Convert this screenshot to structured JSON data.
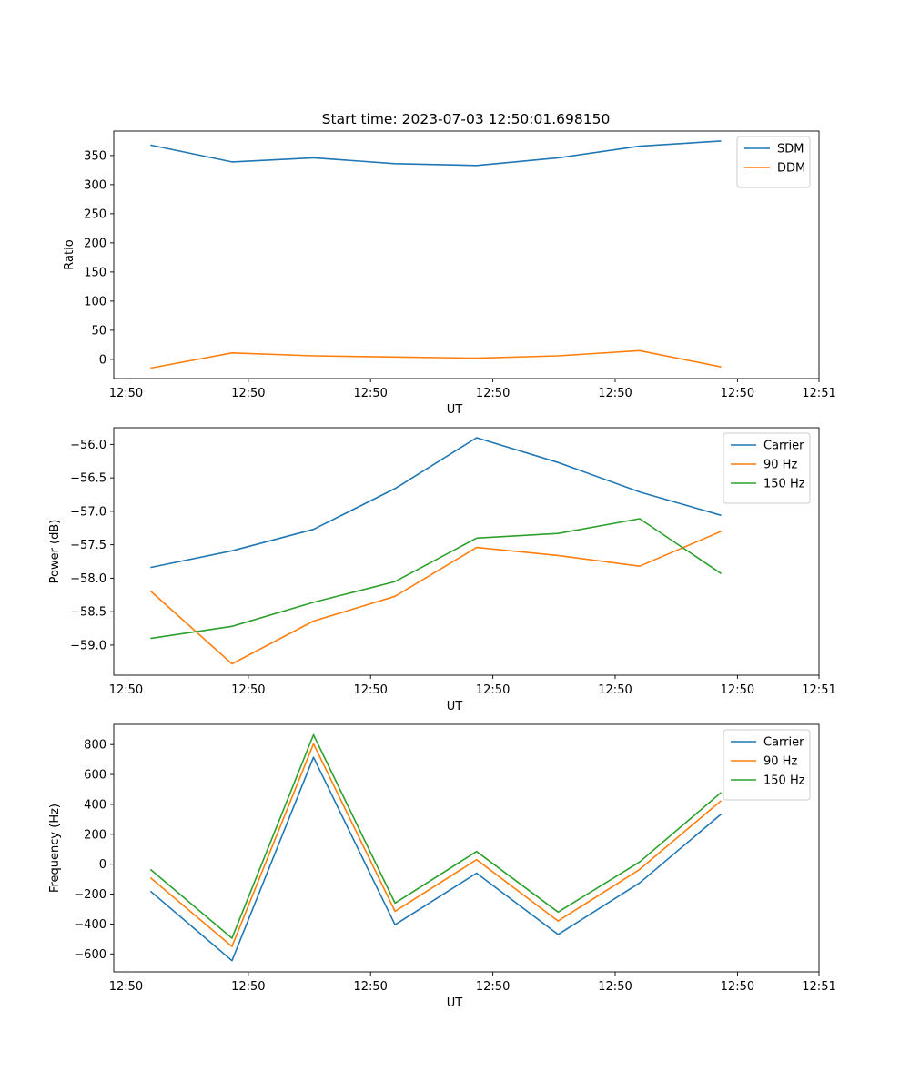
{
  "figure": {
    "title": "Start time: 2023-07-03 12:50:01.698150"
  },
  "chart_data": [
    {
      "type": "line",
      "title": "Start time: 2023-07-03 12:50:01.698150",
      "xlabel": "UT",
      "ylabel": "Ratio",
      "x": [
        1,
        2,
        3,
        4,
        5,
        6,
        7,
        8
      ],
      "xlim": [
        0.55,
        9.2
      ],
      "xticks": [
        {
          "value": 0.7,
          "label": "12:50"
        },
        {
          "value": 2.2,
          "label": "12:50"
        },
        {
          "value": 3.7,
          "label": "12:50"
        },
        {
          "value": 5.2,
          "label": "12:50"
        },
        {
          "value": 6.7,
          "label": "12:50"
        },
        {
          "value": 8.2,
          "label": "12:50"
        },
        {
          "value": 9.2,
          "label": "12:51"
        }
      ],
      "ylim": [
        -33,
        392
      ],
      "yticks": [
        {
          "value": 0,
          "label": "0"
        },
        {
          "value": 50,
          "label": "50"
        },
        {
          "value": 100,
          "label": "100"
        },
        {
          "value": 150,
          "label": "150"
        },
        {
          "value": 200,
          "label": "200"
        },
        {
          "value": 250,
          "label": "250"
        },
        {
          "value": 300,
          "label": "300"
        },
        {
          "value": 350,
          "label": "350"
        }
      ],
      "legend": "top-right",
      "series": [
        {
          "name": "SDM",
          "color": "#1f77b4",
          "values": [
            368,
            339,
            346,
            336,
            333,
            346,
            366,
            375
          ]
        },
        {
          "name": "DDM",
          "color": "#ff7f0e",
          "values": [
            -15,
            11,
            6,
            4,
            2,
            6,
            15,
            -13
          ]
        }
      ]
    },
    {
      "type": "line",
      "title": "",
      "xlabel": "UT",
      "ylabel": "Power (dB)",
      "x": [
        1,
        2,
        3,
        4,
        5,
        6,
        7,
        8
      ],
      "xlim": [
        0.55,
        9.2
      ],
      "xticks": [
        {
          "value": 0.7,
          "label": "12:50"
        },
        {
          "value": 2.2,
          "label": "12:50"
        },
        {
          "value": 3.7,
          "label": "12:50"
        },
        {
          "value": 5.2,
          "label": "12:50"
        },
        {
          "value": 6.7,
          "label": "12:50"
        },
        {
          "value": 8.2,
          "label": "12:50"
        },
        {
          "value": 9.2,
          "label": "12:51"
        }
      ],
      "ylim": [
        -59.45,
        -55.75
      ],
      "yticks": [
        {
          "value": -59.0,
          "label": "−59.0"
        },
        {
          "value": -58.5,
          "label": "−58.5"
        },
        {
          "value": -58.0,
          "label": "−58.0"
        },
        {
          "value": -57.5,
          "label": "−57.5"
        },
        {
          "value": -57.0,
          "label": "−57.0"
        },
        {
          "value": -56.5,
          "label": "−56.5"
        },
        {
          "value": -56.0,
          "label": "−56.0"
        }
      ],
      "legend": "top-right",
      "series": [
        {
          "name": "Carrier",
          "color": "#1f77b4",
          "values": [
            -57.84,
            -57.59,
            -57.27,
            -56.66,
            -55.9,
            -56.27,
            -56.71,
            -57.06
          ]
        },
        {
          "name": "90 Hz",
          "color": "#ff7f0e",
          "values": [
            -58.19,
            -59.28,
            -58.64,
            -58.27,
            -57.54,
            -57.66,
            -57.82,
            -57.3
          ]
        },
        {
          "name": "150 Hz",
          "color": "#2ca02c",
          "values": [
            -58.9,
            -58.72,
            -58.36,
            -58.05,
            -57.4,
            -57.33,
            -57.11,
            -57.93
          ]
        }
      ]
    },
    {
      "type": "line",
      "title": "",
      "xlabel": "UT",
      "ylabel": "Frequency (Hz)",
      "x": [
        1,
        2,
        3,
        4,
        5,
        6,
        7,
        8
      ],
      "xlim": [
        0.55,
        9.2
      ],
      "xticks": [
        {
          "value": 0.7,
          "label": "12:50"
        },
        {
          "value": 2.2,
          "label": "12:50"
        },
        {
          "value": 3.7,
          "label": "12:50"
        },
        {
          "value": 5.2,
          "label": "12:50"
        },
        {
          "value": 6.7,
          "label": "12:50"
        },
        {
          "value": 8.2,
          "label": "12:50"
        },
        {
          "value": 9.2,
          "label": "12:51"
        }
      ],
      "ylim": [
        -720,
        935
      ],
      "yticks": [
        {
          "value": -600,
          "label": "−600"
        },
        {
          "value": -400,
          "label": "−400"
        },
        {
          "value": -200,
          "label": "−200"
        },
        {
          "value": 0,
          "label": "0"
        },
        {
          "value": 200,
          "label": "200"
        },
        {
          "value": 400,
          "label": "400"
        },
        {
          "value": 600,
          "label": "600"
        },
        {
          "value": 800,
          "label": "800"
        }
      ],
      "legend": "top-right",
      "series": [
        {
          "name": "Carrier",
          "color": "#1f77b4",
          "values": [
            -180,
            -645,
            715,
            -405,
            -60,
            -470,
            -125,
            335
          ]
        },
        {
          "name": "90 Hz",
          "color": "#ff7f0e",
          "values": [
            -90,
            -550,
            805,
            -315,
            30,
            -380,
            -35,
            425
          ]
        },
        {
          "name": "150 Hz",
          "color": "#2ca02c",
          "values": [
            -35,
            -495,
            865,
            -260,
            85,
            -320,
            15,
            480
          ]
        }
      ]
    }
  ]
}
